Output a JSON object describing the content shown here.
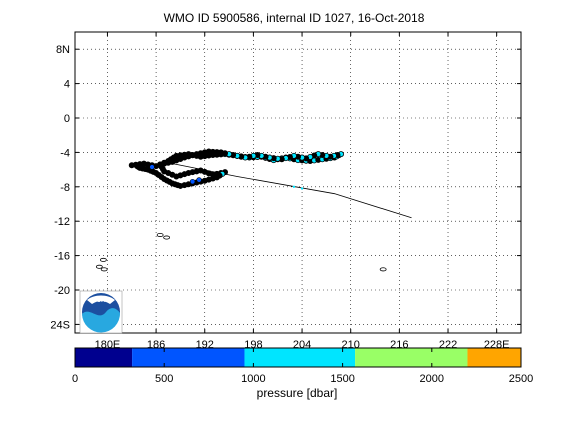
{
  "chart_data": {
    "type": "scatter",
    "title": "WMO ID 5900586, internal ID 1027, 16-Oct-2018",
    "x_ticks": [
      {
        "value": 180,
        "label": "180E"
      },
      {
        "value": 186,
        "label": "186"
      },
      {
        "value": 192,
        "label": "192"
      },
      {
        "value": 198,
        "label": "198"
      },
      {
        "value": 204,
        "label": "204"
      },
      {
        "value": 210,
        "label": "210"
      },
      {
        "value": 216,
        "label": "216"
      },
      {
        "value": 222,
        "label": "222"
      },
      {
        "value": 228,
        "label": "228E"
      }
    ],
    "y_ticks": [
      {
        "value": 8,
        "label": "8N"
      },
      {
        "value": 4,
        "label": "4"
      },
      {
        "value": 0,
        "label": "0"
      },
      {
        "value": -4,
        "label": "-4"
      },
      {
        "value": -8,
        "label": "-8"
      },
      {
        "value": -12,
        "label": "-12"
      },
      {
        "value": -16,
        "label": "-16"
      },
      {
        "value": -20,
        "label": "-20"
      },
      {
        "value": -24,
        "label": "24S"
      }
    ],
    "xlim": [
      176,
      231
    ],
    "ylim": [
      -25,
      10
    ],
    "grid": true,
    "trajectory": [
      [
        183.0,
        -5.5
      ],
      [
        184.5,
        -5.3
      ],
      [
        186.0,
        -5.6
      ],
      [
        187.5,
        -5.0
      ],
      [
        188.5,
        -4.4
      ],
      [
        190.0,
        -4.2
      ],
      [
        191.5,
        -4.5
      ],
      [
        193.0,
        -4.3
      ],
      [
        194.5,
        -4.2
      ],
      [
        196.0,
        -4.4
      ],
      [
        197.5,
        -4.6
      ],
      [
        199.0,
        -4.5
      ],
      [
        200.5,
        -4.9
      ],
      [
        202.0,
        -4.6
      ],
      [
        203.5,
        -4.9
      ],
      [
        205.0,
        -5.0
      ],
      [
        206.5,
        -4.8
      ],
      [
        208.0,
        -4.6
      ],
      [
        208.8,
        -4.2
      ],
      [
        207.5,
        -4.5
      ],
      [
        206.0,
        -4.2
      ],
      [
        204.5,
        -4.7
      ],
      [
        203.0,
        -4.4
      ],
      [
        201.5,
        -4.8
      ],
      [
        200.0,
        -4.6
      ],
      [
        198.5,
        -4.3
      ],
      [
        197.0,
        -4.6
      ],
      [
        195.5,
        -4.3
      ],
      [
        194.0,
        -4.0
      ],
      [
        192.5,
        -3.9
      ],
      [
        191.0,
        -4.2
      ],
      [
        189.5,
        -4.6
      ],
      [
        188.0,
        -5.1
      ],
      [
        186.5,
        -5.4
      ],
      [
        187.0,
        -6.2
      ],
      [
        188.5,
        -6.8
      ],
      [
        190.0,
        -6.4
      ],
      [
        191.5,
        -6.1
      ],
      [
        193.0,
        -6.6
      ],
      [
        194.5,
        -6.3
      ],
      [
        193.5,
        -6.9
      ],
      [
        192.0,
        -7.3
      ],
      [
        190.5,
        -7.6
      ],
      [
        189.0,
        -7.9
      ],
      [
        188.0,
        -7.6
      ],
      [
        187.0,
        -7.1
      ],
      [
        186.0,
        -6.4
      ],
      [
        185.0,
        -6.0
      ],
      [
        184.0,
        -5.8
      ],
      [
        183.5,
        -5.5
      ]
    ],
    "outlier_track": [
      [
        187.5,
        -5.2
      ],
      [
        196.0,
        -6.8
      ],
      [
        208.0,
        -8.8
      ],
      [
        217.5,
        -11.6
      ]
    ],
    "islands": [
      [
        186.5,
        -13.6
      ],
      [
        187.3,
        -13.9
      ],
      [
        179.5,
        -16.5
      ],
      [
        179.0,
        -17.3
      ],
      [
        179.6,
        -17.6
      ],
      [
        214.0,
        -17.6
      ]
    ],
    "colorbar": {
      "label": "pressure [dbar]",
      "range": [
        0,
        2500
      ],
      "tick_labels": [
        "0",
        "500",
        "1000",
        "1500",
        "2000",
        "2500"
      ],
      "segments": [
        {
          "from": 0,
          "to": 320,
          "color": "#00008f"
        },
        {
          "from": 320,
          "to": 950,
          "color": "#0055ff"
        },
        {
          "from": 950,
          "to": 1570,
          "color": "#00e5ff"
        },
        {
          "from": 1570,
          "to": 2200,
          "color": "#99ff66"
        },
        {
          "from": 2200,
          "to": 2500,
          "color": "#ffa500"
        }
      ]
    }
  },
  "logo": {
    "text": "NOAA",
    "icon": "noaa-logo-icon"
  }
}
